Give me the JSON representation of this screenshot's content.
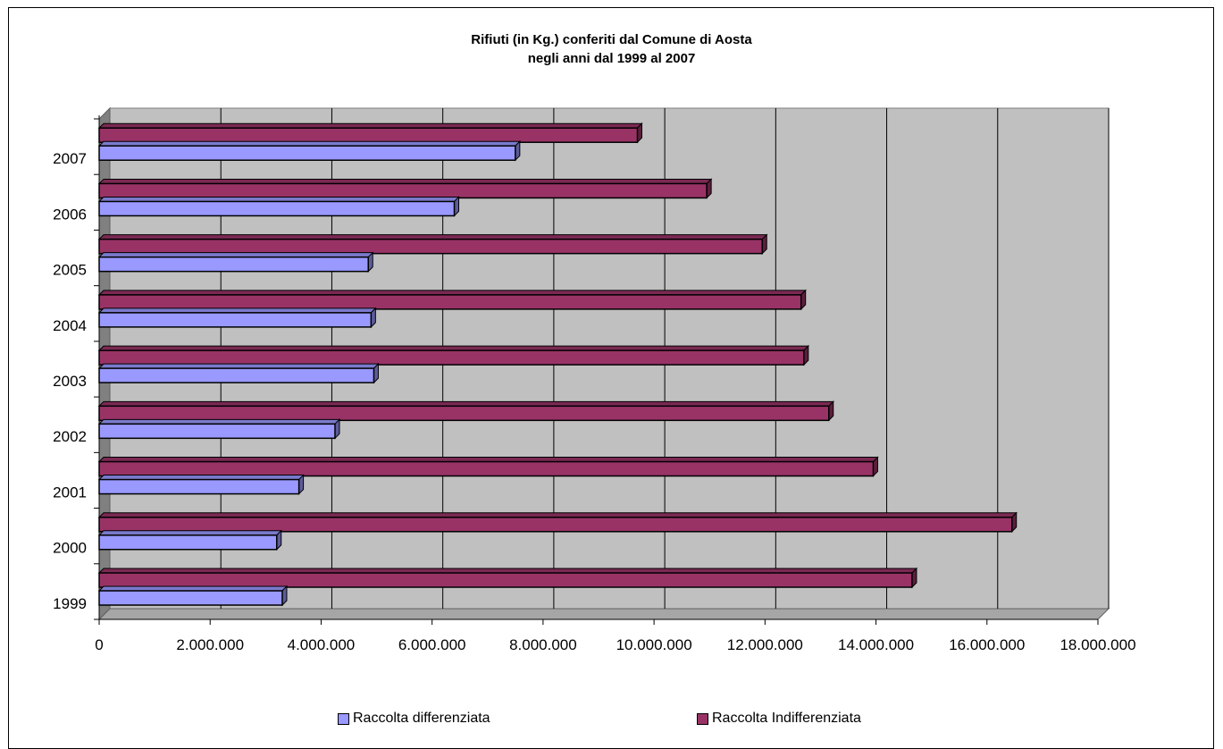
{
  "chart_data": {
    "type": "bar",
    "orientation": "horizontal",
    "title": "Rifiuti (in Kg.) conferiti dal Comune di Aosta",
    "subtitle": "negli anni dal 1999 al 2007",
    "categories": [
      "1999",
      "2000",
      "2001",
      "2002",
      "2003",
      "2004",
      "2005",
      "2006",
      "2007"
    ],
    "series": [
      {
        "name": "Raccolta differenziata",
        "color": "#9999ff",
        "values": [
          3300000,
          3200000,
          3600000,
          4250000,
          4950000,
          4900000,
          4850000,
          6400000,
          7500000
        ]
      },
      {
        "name": "Raccolta Indifferenziata",
        "color": "#993366",
        "values": [
          14650000,
          16450000,
          13950000,
          13150000,
          12700000,
          12650000,
          11950000,
          10950000,
          9700000
        ]
      }
    ],
    "xlim": [
      0,
      18000000
    ],
    "xticks": [
      "0",
      "2.000.000",
      "4.000.000",
      "6.000.000",
      "8.000.000",
      "10.000.000",
      "12.000.000",
      "14.000.000",
      "16.000.000",
      "18.000.000"
    ],
    "grid": true,
    "plot_background": "#c0c0c0",
    "legend": "bottom"
  }
}
